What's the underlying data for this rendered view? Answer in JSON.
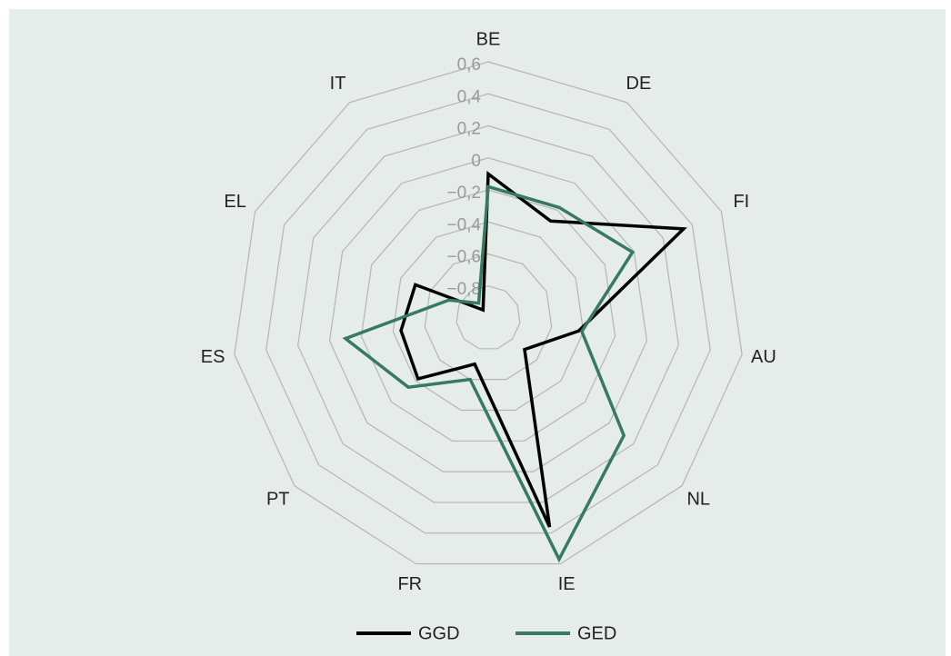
{
  "chart_data": {
    "type": "radar",
    "categories": [
      "BE",
      "DE",
      "FI",
      "AU",
      "NL",
      "IE",
      "FR",
      "PT",
      "ES",
      "EL",
      "IT"
    ],
    "series": [
      {
        "name": "GGD",
        "color": "#000000",
        "values": [
          -0.1,
          -0.28,
          0.34,
          -0.43,
          -0.7,
          0.36,
          -0.7,
          -0.42,
          -0.45,
          -0.5,
          -0.94
        ]
      },
      {
        "name": "GED",
        "color": "#367a62",
        "values": [
          -0.18,
          -0.18,
          -0.01,
          -0.41,
          0.12,
          0.57,
          -0.6,
          -0.34,
          -0.1,
          -0.73,
          -0.89
        ]
      }
    ],
    "ylim": [
      -1,
      0.6
    ],
    "yticks": [
      {
        "value": 0.6,
        "label": "0,6"
      },
      {
        "value": 0.4,
        "label": "0,4"
      },
      {
        "value": 0.2,
        "label": "0,2"
      },
      0,
      {
        "value": -0.2,
        "label": "−0,2"
      },
      {
        "value": -0.4,
        "label": "−0,4"
      },
      {
        "value": -0.6,
        "label": "−0,6"
      },
      {
        "value": -0.8,
        "label": "−0,8"
      }
    ],
    "grid": true,
    "legend": "bottom"
  }
}
